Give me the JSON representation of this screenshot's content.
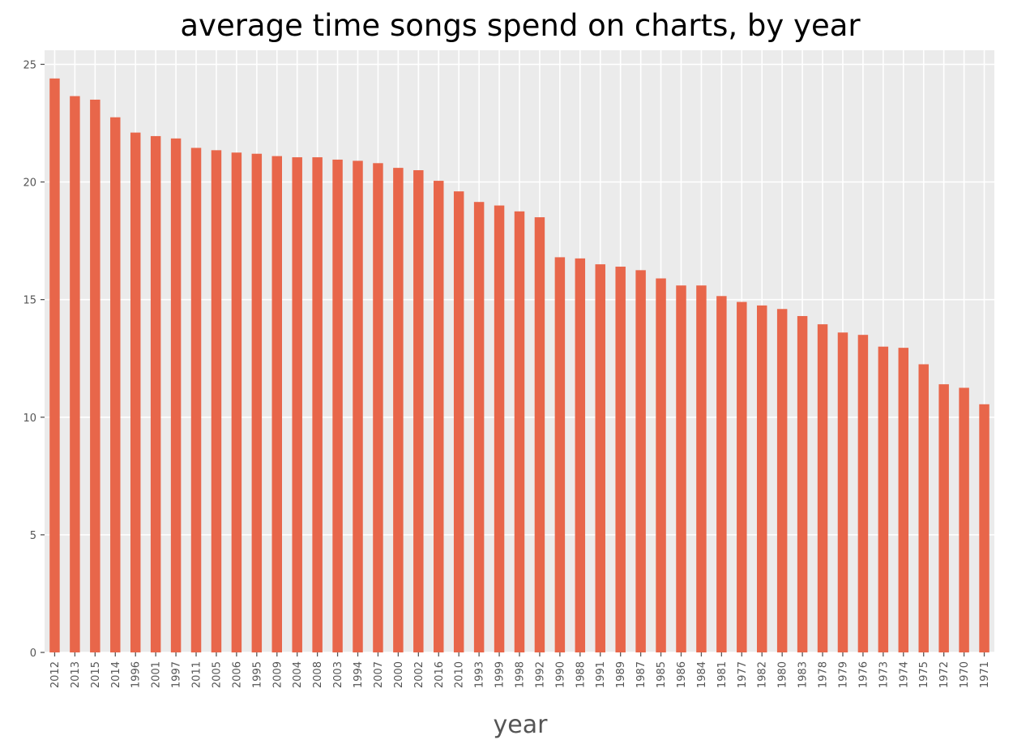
{
  "chart_data": {
    "type": "bar",
    "title": "average time songs spend on charts, by year",
    "xlabel": "year",
    "ylabel": "",
    "ylim": [
      0,
      25.6
    ],
    "yticks": [
      0,
      5,
      10,
      15,
      20,
      25
    ],
    "grid": true,
    "legend": "none",
    "colors": {
      "bar": "#E8664A",
      "plot_background": "#EBEBEB",
      "grid": "#FFFFFF",
      "tick_mark": "#555555"
    },
    "categories": [
      "2012",
      "2013",
      "2015",
      "2014",
      "1996",
      "2001",
      "1997",
      "2011",
      "2005",
      "2006",
      "1995",
      "2009",
      "2004",
      "2008",
      "2003",
      "1994",
      "2007",
      "2000",
      "2002",
      "2016",
      "2010",
      "1993",
      "1999",
      "1998",
      "1992",
      "1990",
      "1988",
      "1991",
      "1989",
      "1987",
      "1985",
      "1986",
      "1984",
      "1981",
      "1977",
      "1982",
      "1980",
      "1983",
      "1978",
      "1979",
      "1976",
      "1973",
      "1974",
      "1975",
      "1972",
      "1970",
      "1971"
    ],
    "values": [
      24.4,
      23.65,
      23.5,
      22.75,
      22.1,
      21.95,
      21.85,
      21.45,
      21.35,
      21.25,
      21.2,
      21.1,
      21.05,
      21.05,
      20.95,
      20.9,
      20.8,
      20.6,
      20.5,
      20.05,
      19.6,
      19.15,
      19.0,
      18.75,
      18.5,
      16.8,
      16.75,
      16.5,
      16.4,
      16.25,
      15.9,
      15.6,
      15.6,
      15.15,
      14.9,
      14.75,
      14.6,
      14.3,
      13.95,
      13.6,
      13.5,
      13.0,
      12.95,
      12.25,
      11.4,
      11.25,
      10.55
    ]
  }
}
